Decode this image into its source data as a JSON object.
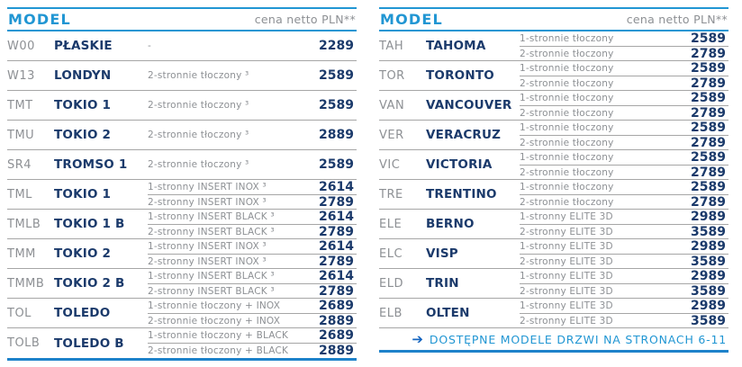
{
  "colors": {
    "accent": "#2196d3",
    "navy": "#1b3a6b",
    "gray": "#8d9094",
    "line": "#a6a6a6",
    "bottomline": "#1e82ca",
    "arrow": "#1565c0"
  },
  "tables": [
    {
      "header": {
        "model_label": "MODEL",
        "price_label": "cena netto PLN**"
      },
      "rows": [
        {
          "code": "W00",
          "name": "PŁASKIE",
          "variants": [
            {
              "desc": "-",
              "price": "2289"
            }
          ]
        },
        {
          "code": "W13",
          "name": "LONDYN",
          "variants": [
            {
              "desc": "2-stronnie tłoczony ³",
              "price": "2589"
            }
          ]
        },
        {
          "code": "TMT",
          "name": "TOKIO 1",
          "variants": [
            {
              "desc": "2-stronnie tłoczony ³",
              "price": "2589"
            }
          ]
        },
        {
          "code": "TMU",
          "name": "TOKIO 2",
          "variants": [
            {
              "desc": "2-stronnie tłoczony ³",
              "price": "2889"
            }
          ]
        },
        {
          "code": "SR4",
          "name": "TROMSO 1",
          "variants": [
            {
              "desc": "2-stronnie tłoczony ³",
              "price": "2589"
            }
          ]
        },
        {
          "code": "TML",
          "name": "TOKIO 1",
          "variants": [
            {
              "desc": "1-stronny INSERT INOX ³",
              "price": "2614"
            },
            {
              "desc": "2-stronny INSERT INOX ³",
              "price": "2789"
            }
          ]
        },
        {
          "code": "TMLB",
          "name": "TOKIO 1 B",
          "variants": [
            {
              "desc": "1-stronny INSERT BLACK ³",
              "price": "2614"
            },
            {
              "desc": "2-stronny INSERT BLACK ³",
              "price": "2789"
            }
          ]
        },
        {
          "code": "TMM",
          "name": "TOKIO 2",
          "variants": [
            {
              "desc": "1-stronny INSERT INOX ³",
              "price": "2614"
            },
            {
              "desc": "2-stronny INSERT INOX ³",
              "price": "2789"
            }
          ]
        },
        {
          "code": "TMMB",
          "name": "TOKIO 2 B",
          "variants": [
            {
              "desc": "1-stronny INSERT BLACK ³",
              "price": "2614"
            },
            {
              "desc": "2-stronny INSERT BLACK ³",
              "price": "2789"
            }
          ]
        },
        {
          "code": "TOL",
          "name": "TOLEDO",
          "variants": [
            {
              "desc": "1-stronnie tłoczony + INOX",
              "price": "2689"
            },
            {
              "desc": "2-stronnie tłoczony + INOX",
              "price": "2889"
            }
          ]
        },
        {
          "code": "TOLB",
          "name": "TOLEDO B",
          "variants": [
            {
              "desc": "1-stronnie tłoczony + BLACK",
              "price": "2689"
            },
            {
              "desc": "2-stronnie tłoczony + BLACK",
              "price": "2889"
            }
          ]
        }
      ]
    },
    {
      "header": {
        "model_label": "MODEL",
        "price_label": "cena netto PLN**"
      },
      "rows": [
        {
          "code": "TAH",
          "name": "TAHOMA",
          "variants": [
            {
              "desc": "1-stronnie tłoczony",
              "price": "2589"
            },
            {
              "desc": "2-stronnie tłoczony",
              "price": "2789"
            }
          ]
        },
        {
          "code": "TOR",
          "name": "TORONTO",
          "variants": [
            {
              "desc": "1-stronnie tłoczony",
              "price": "2589"
            },
            {
              "desc": "2-stronnie tłoczony",
              "price": "2789"
            }
          ]
        },
        {
          "code": "VAN",
          "name": "VANCOUVER",
          "variants": [
            {
              "desc": "1-stronnie tłoczony",
              "price": "2589"
            },
            {
              "desc": "2-stronnie tłoczony",
              "price": "2789"
            }
          ]
        },
        {
          "code": "VER",
          "name": "VERACRUZ",
          "variants": [
            {
              "desc": "1-stronnie tłoczony",
              "price": "2589"
            },
            {
              "desc": "2-stronnie tłoczony",
              "price": "2789"
            }
          ]
        },
        {
          "code": "VIC",
          "name": "VICTORIA",
          "variants": [
            {
              "desc": "1-stronnie tłoczony",
              "price": "2589"
            },
            {
              "desc": "2-stronnie tłoczony",
              "price": "2789"
            }
          ]
        },
        {
          "code": "TRE",
          "name": "TRENTINO",
          "variants": [
            {
              "desc": "1-stronnie tłoczony",
              "price": "2589"
            },
            {
              "desc": "2-stronnie tłoczony",
              "price": "2789"
            }
          ]
        },
        {
          "code": "ELE",
          "name": "BERNO",
          "variants": [
            {
              "desc": "1-stronny ELITE 3D",
              "price": "2989"
            },
            {
              "desc": "2-stronny ELITE 3D",
              "price": "3589"
            }
          ]
        },
        {
          "code": "ELC",
          "name": "VISP",
          "variants": [
            {
              "desc": "1-stronny ELITE 3D",
              "price": "2989"
            },
            {
              "desc": "2-stronny ELITE 3D",
              "price": "3589"
            }
          ]
        },
        {
          "code": "ELD",
          "name": "TRIN",
          "variants": [
            {
              "desc": "1-stronny ELITE 3D",
              "price": "2989"
            },
            {
              "desc": "2-stronny ELITE 3D",
              "price": "3589"
            }
          ]
        },
        {
          "code": "ELB",
          "name": "OLTEN",
          "variants": [
            {
              "desc": "1-stronny ELITE 3D",
              "price": "2989"
            },
            {
              "desc": "2-stronny ELITE 3D",
              "price": "3589"
            }
          ]
        }
      ],
      "footer": {
        "arrow": "➔",
        "text": "DOSTĘPNE MODELE DRZWI NA STRONACH 6-11"
      }
    }
  ]
}
